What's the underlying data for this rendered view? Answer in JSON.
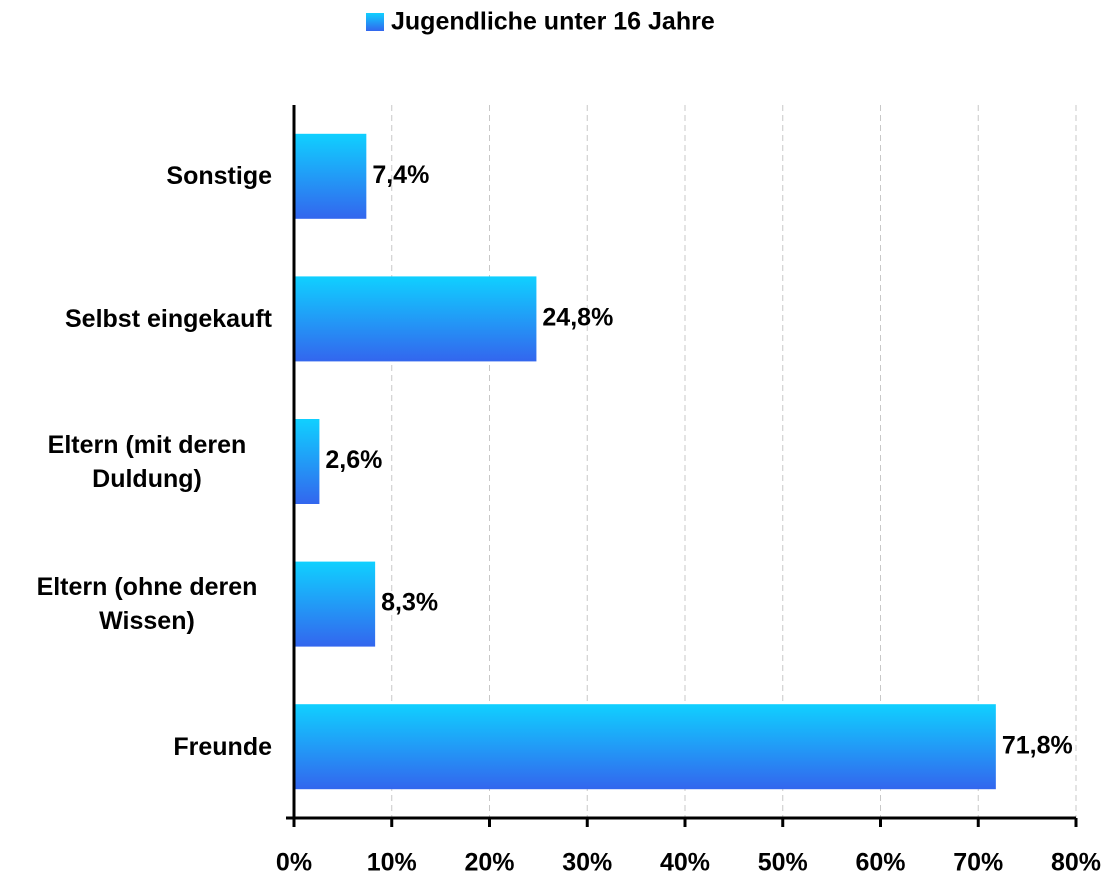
{
  "chart_data": {
    "type": "barh",
    "categories": [
      "Sonstige",
      "Selbst eingekauft",
      "Eltern (mit deren Duldung)",
      "Eltern (ohne deren Wissen)",
      "Freunde"
    ],
    "series": [
      {
        "name": "Jugendliche unter 16 Jahre",
        "color": [
          "#10d0ff",
          "#3366ee"
        ],
        "values": [
          7.4,
          24.8,
          2.6,
          8.3,
          71.8
        ],
        "value_labels": [
          "7,4%",
          "24,8%",
          "2,6%",
          "8,3%",
          "71,8%"
        ]
      }
    ],
    "xlim": [
      0,
      80
    ],
    "xticks": [
      {
        "value": 0,
        "label": "0%"
      },
      {
        "value": 10,
        "label": "10%"
      },
      {
        "value": 20,
        "label": "20%"
      },
      {
        "value": 30,
        "label": "30%"
      },
      {
        "value": 40,
        "label": "40%"
      },
      {
        "value": 50,
        "label": "50%"
      },
      {
        "value": 60,
        "label": "60%"
      },
      {
        "value": 70,
        "label": "70%"
      },
      {
        "value": 80,
        "label": "80%"
      }
    ],
    "grid": true,
    "legend": "top"
  }
}
